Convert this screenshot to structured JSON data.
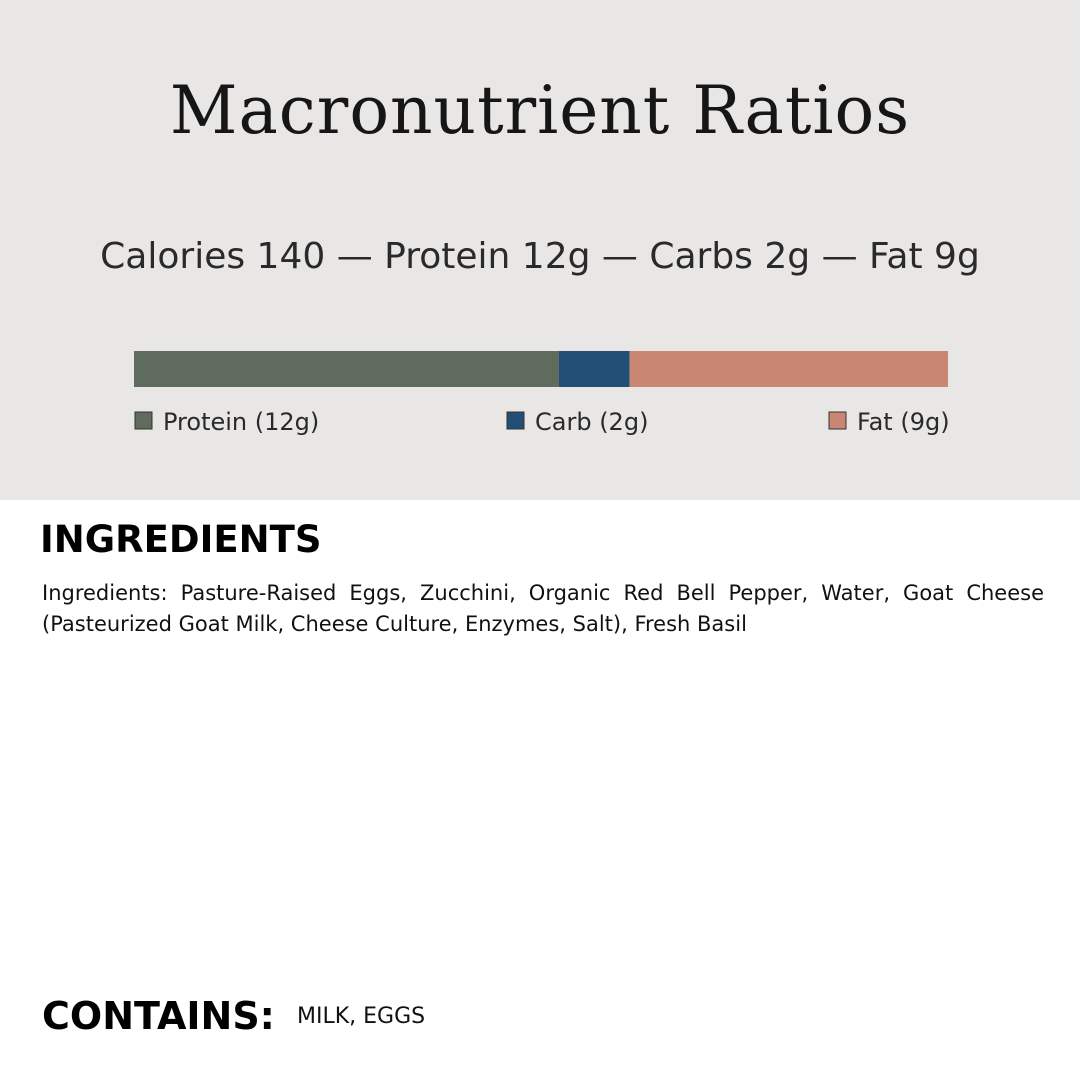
{
  "chart_data": {
    "type": "bar",
    "orientation": "horizontal-stacked",
    "title": "Macronutrient Ratios",
    "subtitle": "Calories 140 — Protein 12g — Carbs 2g — Fat 9g",
    "categories": [
      "Protein",
      "Carb",
      "Fat"
    ],
    "values": [
      12,
      2,
      9
    ],
    "unit": "g",
    "legend": [
      "Protein (12g)",
      "Carb (2g)",
      "Fat (9g)"
    ],
    "legend_placement": "bottom",
    "colors": [
      "#5f6b5c",
      "#224f75",
      "#c98672"
    ],
    "grid": false
  },
  "ingredients": {
    "heading": "INGREDIENTS",
    "text": "Ingredients: Pasture-Raised Eggs, Zucchini, Organic Red Bell Pepper, Water, Goat Cheese (Pasteurized Goat Milk, Cheese Culture, Enzymes, Salt), Fresh Basil"
  },
  "contains": {
    "heading": "CONTAINS:",
    "text": "MILK, EGGS"
  },
  "colors": {
    "panel_background": "#e9e7e5"
  }
}
